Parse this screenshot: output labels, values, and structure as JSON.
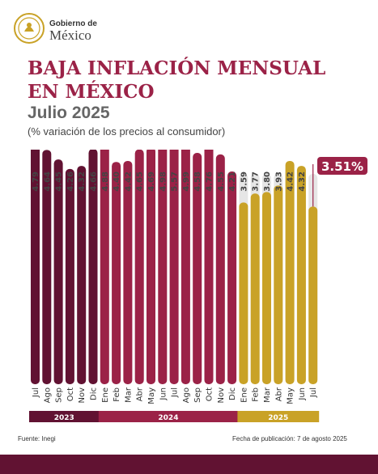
{
  "header": {
    "logo_top": "Gobierno de",
    "logo_main": "México",
    "title": "BAJA INFLACIÓN MENSUAL EN MÉXICO",
    "subtitle": "Julio 2025",
    "note": "(% variación de los precios al consumidor)"
  },
  "footer": {
    "source": "Fuente: Inegi",
    "date": "Fecha de publicación: 7 de agosto 2025"
  },
  "colors": {
    "y2023": "#611232",
    "y2024": "#9b2247",
    "y2025": "#c9a227",
    "track": "#e6e6e6",
    "callout": "#9b2247"
  },
  "chart_data": {
    "type": "bar",
    "categories": [
      "Jul",
      "Ago",
      "Sep",
      "Oct",
      "Nov",
      "Dic",
      "Ene",
      "Feb",
      "Mar",
      "Abr",
      "May",
      "Jun",
      "Jul",
      "Ago",
      "Sep",
      "Oct",
      "Nov",
      "Dic",
      "Ene",
      "Feb",
      "Mar",
      "Abr",
      "May",
      "Jun",
      "Jul"
    ],
    "values": [
      4.79,
      4.64,
      4.45,
      4.26,
      4.32,
      4.66,
      4.88,
      4.4,
      4.42,
      4.65,
      4.69,
      4.98,
      5.57,
      4.99,
      4.58,
      4.76,
      4.55,
      4.21,
      3.59,
      3.77,
      3.8,
      3.93,
      4.42,
      4.32,
      3.51
    ],
    "value_labels": [
      "4.79",
      "4.64",
      "4.45",
      "4.26",
      "4.32",
      "4.66",
      "4.88",
      "4.40",
      "4.42",
      "4.65",
      "4.69",
      "4.98",
      "5.57",
      "4.99",
      "4.58",
      "4.76",
      "4.55",
      "4.21",
      "3.59",
      "3.77",
      "3.80",
      "3.93",
      "4.42",
      "4.32",
      ""
    ],
    "groups": [
      {
        "label": "2023",
        "count": 6
      },
      {
        "label": "2024",
        "count": 12
      },
      {
        "label": "2025",
        "count": 7
      }
    ],
    "highlight": {
      "index": 24,
      "label": "3.51%"
    }
  }
}
